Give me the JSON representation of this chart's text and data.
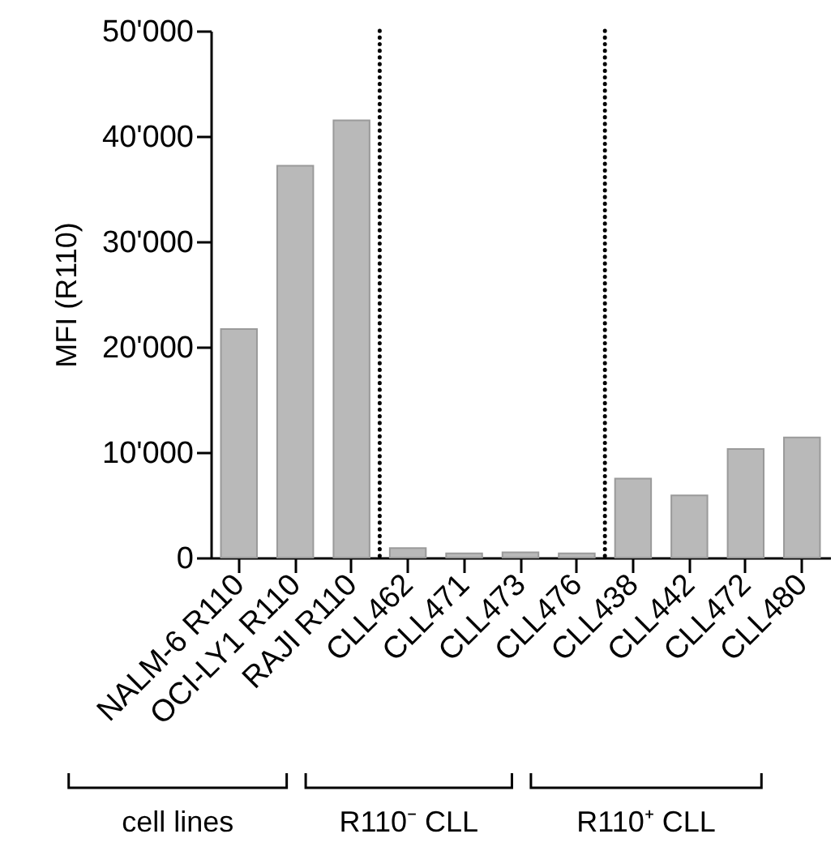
{
  "chart_data": {
    "type": "bar",
    "ylabel": "MFI (R110)",
    "categories": [
      "NALM-6 R110",
      "OCI-LY1 R110",
      "RAJI R110",
      "CLL462",
      "CLL471",
      "CLL473",
      "CLL476",
      "CLL438",
      "CLL442",
      "CLL472",
      "CLL480"
    ],
    "values": [
      21700,
      37200,
      41500,
      900,
      400,
      500,
      400,
      7500,
      5900,
      10300,
      11400
    ],
    "color": "#b9b9b9",
    "ylim": [
      0,
      50000
    ],
    "yticks": [
      {
        "value": 0,
        "label": "0"
      },
      {
        "value": 10000,
        "label": "10'000"
      },
      {
        "value": 20000,
        "label": "20'000"
      },
      {
        "value": 30000,
        "label": "30'000"
      },
      {
        "value": 40000,
        "label": "40'000"
      },
      {
        "value": 50000,
        "label": "50'000"
      }
    ],
    "grid": false,
    "annotations": [
      "cell lines",
      "R110⁻ CLL",
      "R110⁺ CLL"
    ]
  }
}
